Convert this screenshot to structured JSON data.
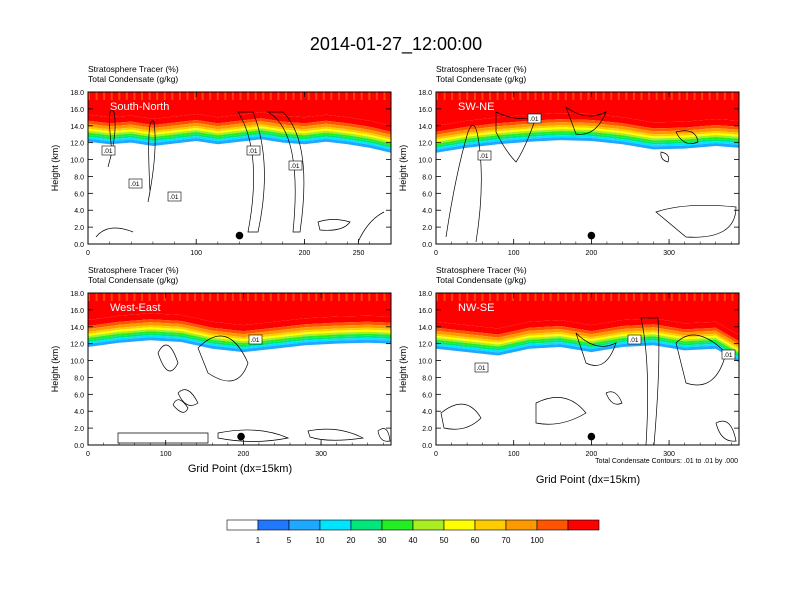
{
  "page_title": "2014-01-27_12:00:00",
  "field_label_1": "Stratosphere Tracer   (%)",
  "field_label_2": "Total Condensate   (g/kg)",
  "ylabel": "Height (km)",
  "xlabel": "Grid Point (dx=15km)",
  "contour_info": "Total Condensate Contours: .01 to .01 by .000",
  "colors": [
    "#ffffff",
    "#1f78ff",
    "#1fa8ff",
    "#00e5ff",
    "#00e67a",
    "#22ee22",
    "#a8ee22",
    "#ffff00",
    "#ffcc00",
    "#ff9900",
    "#ff5500",
    "#ff0000"
  ],
  "chart_data": [
    {
      "type": "heatmap",
      "panel": "South-North",
      "title": "South-North",
      "xlim": [
        0,
        280
      ],
      "xticks": [
        0,
        100,
        200
      ],
      "xtick_labels": [
        "0",
        "100",
        "200"
      ],
      "xtick_extra": [
        {
          "value": 250,
          "label": "250"
        }
      ],
      "ylim": [
        0,
        18
      ],
      "yticks": [
        "0.0",
        "2.0",
        "4.0",
        "6.0",
        "8.0",
        "10.0",
        "12.0",
        "14.0",
        "16.0",
        "18.0"
      ],
      "tropopause_km": [
        [
          0,
          15.3
        ],
        [
          20,
          15.0
        ],
        [
          40,
          15.2
        ],
        [
          60,
          14.8
        ],
        [
          80,
          15.1
        ],
        [
          100,
          15.4
        ],
        [
          120,
          15.0
        ],
        [
          140,
          15.3
        ],
        [
          160,
          15.6
        ],
        [
          180,
          15.2
        ],
        [
          200,
          15.0
        ],
        [
          220,
          15.3
        ],
        [
          240,
          15.0
        ],
        [
          260,
          14.6
        ],
        [
          280,
          14.0
        ]
      ],
      "contour_labels": [
        ".01",
        ".01",
        ".01",
        ".01",
        ".01"
      ],
      "marker_x": 140,
      "marker_y_km": 1.0
    },
    {
      "type": "heatmap",
      "panel": "SW-NE",
      "title": "SW-NE",
      "xlim": [
        0,
        390
      ],
      "xticks": [
        0,
        100,
        200,
        300
      ],
      "xtick_labels": [
        "0",
        "100",
        "200",
        "300"
      ],
      "ylim": [
        0,
        18
      ],
      "yticks": [
        "0.0",
        "2.0",
        "4.0",
        "6.0",
        "8.0",
        "10.0",
        "12.0",
        "14.0",
        "16.0",
        "18.0"
      ],
      "tropopause_km": [
        [
          0,
          14.0
        ],
        [
          40,
          14.6
        ],
        [
          80,
          15.0
        ],
        [
          120,
          15.3
        ],
        [
          160,
          15.5
        ],
        [
          200,
          15.4
        ],
        [
          240,
          15.0
        ],
        [
          280,
          14.4
        ],
        [
          320,
          14.5
        ],
        [
          360,
          14.8
        ],
        [
          390,
          14.6
        ]
      ],
      "contour_labels": [
        ".01",
        ".01"
      ],
      "marker_x": 200,
      "marker_y_km": 1.0
    },
    {
      "type": "heatmap",
      "panel": "West-East",
      "title": "West-East",
      "xlim": [
        0,
        390
      ],
      "xticks": [
        0,
        100,
        200,
        300
      ],
      "xtick_labels": [
        "0",
        "100",
        "200",
        "300"
      ],
      "ylim": [
        0,
        18
      ],
      "yticks": [
        "0.0",
        "2.0",
        "4.0",
        "6.0",
        "8.0",
        "10.0",
        "12.0",
        "14.0",
        "16.0",
        "18.0"
      ],
      "tropopause_km": [
        [
          0,
          14.8
        ],
        [
          40,
          15.3
        ],
        [
          80,
          15.6
        ],
        [
          120,
          15.4
        ],
        [
          160,
          14.6
        ],
        [
          200,
          14.2
        ],
        [
          240,
          14.6
        ],
        [
          280,
          15.0
        ],
        [
          320,
          15.2
        ],
        [
          360,
          15.3
        ],
        [
          390,
          15.2
        ]
      ],
      "contour_labels": [
        ".01"
      ],
      "marker_x": 197,
      "marker_y_km": 1.0
    },
    {
      "type": "heatmap",
      "panel": "NW-SE",
      "title": "NW-SE",
      "xlim": [
        0,
        390
      ],
      "xticks": [
        0,
        100,
        200,
        300
      ],
      "xtick_labels": [
        "0",
        "100",
        "200",
        "300"
      ],
      "ylim": [
        0,
        18
      ],
      "yticks": [
        "0.0",
        "2.0",
        "4.0",
        "6.0",
        "8.0",
        "10.0",
        "12.0",
        "14.0",
        "16.0",
        "18.0"
      ],
      "tropopause_km": [
        [
          0,
          14.6
        ],
        [
          40,
          14.2
        ],
        [
          80,
          13.8
        ],
        [
          120,
          14.6
        ],
        [
          160,
          14.8
        ],
        [
          200,
          14.2
        ],
        [
          240,
          14.8
        ],
        [
          280,
          15.0
        ],
        [
          320,
          14.4
        ],
        [
          360,
          14.6
        ],
        [
          390,
          13.0
        ]
      ],
      "contour_labels": [
        ".01",
        ".01",
        ".01"
      ],
      "marker_x": 200,
      "marker_y_km": 1.0
    }
  ],
  "colorbar": {
    "labels": [
      "1",
      "5",
      "10",
      "20",
      "30",
      "40",
      "50",
      "60",
      "70",
      "100"
    ]
  }
}
